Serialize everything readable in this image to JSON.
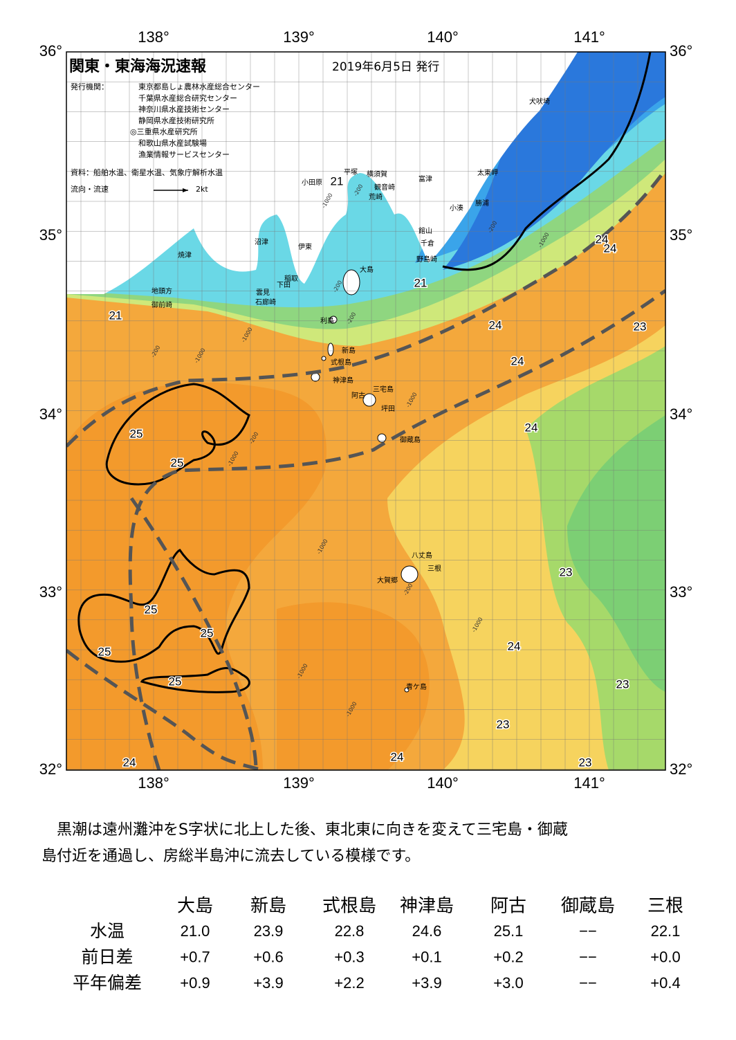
{
  "header": {
    "title": "関東・東海海況速報",
    "date": "2019年6月5日 発行",
    "issuer_label": "発行機関：",
    "issuers": [
      "東京都島しょ農林水産総合センター",
      "千葉県水産総合研究センター",
      "神奈川県水産技術センター",
      "静岡県水産技術研究所",
      "◎三重県水産研究所",
      "和歌山県水産試験場",
      "漁業情報サービスセンター"
    ],
    "source": "資料：船舶水温、衛星水温、気象庁解析水温",
    "legend_label": "流向・流速",
    "legend_speed": "2kt"
  },
  "map": {
    "lon_labels": [
      "138°",
      "139°",
      "140°",
      "141°"
    ],
    "lat_labels": [
      "36°",
      "35°",
      "34°",
      "33°",
      "32°"
    ],
    "places": [
      "小田原",
      "平塚",
      "横須賀",
      "観音崎",
      "荒崎",
      "富津",
      "太東岬",
      "犬吠埼",
      "勝浦",
      "小湊",
      "館山",
      "千倉",
      "野島崎",
      "沼津",
      "伊東",
      "焼津",
      "稲取",
      "下田",
      "雲見",
      "石廊崎",
      "地頭方",
      "御前崎",
      "大島",
      "利島",
      "新島",
      "式根島",
      "神津島",
      "三宅島",
      "阿古",
      "坪田",
      "御蔵島",
      "八丈島",
      "三根",
      "大賀郷",
      "青ケ島"
    ],
    "temperature_labels": [
      "21",
      "21",
      "21",
      "24",
      "24",
      "24",
      "23",
      "24",
      "24",
      "25",
      "25",
      "23",
      "25",
      "25",
      "25",
      "24",
      "25",
      "23",
      "23",
      "24",
      "24",
      "23"
    ],
    "depth_labels": [
      "-200",
      "-1000",
      "-200",
      "-1000",
      "-200",
      "-200",
      "-1000",
      "-1000",
      "-200",
      "-200",
      "-1000",
      "-1000",
      "-200",
      "-1000",
      "-1000",
      "-1000",
      "-1000"
    ]
  },
  "description": [
    "黒潮は遠州灘沖をS字状に北上した後、東北東に向きを変えて三宅島・御蔵",
    "島付近を通過し、房総半島沖に流去している模様です。"
  ],
  "table": {
    "columns": [
      "大島",
      "新島",
      "式根島",
      "神津島",
      "阿古",
      "御蔵島",
      "三根"
    ],
    "rows": [
      [
        "水温",
        "21.0",
        "23.9",
        "22.8",
        "24.6",
        "25.1",
        "−−",
        "22.1"
      ],
      [
        "前日差",
        "+0.7",
        "+0.6",
        "+0.3",
        "+0.1",
        "+0.2",
        "−−",
        "+0.0"
      ],
      [
        "平年偏差",
        "+0.9",
        "+3.9",
        "+2.2",
        "+3.9",
        "+3.0",
        "−−",
        "+0.4"
      ]
    ]
  }
}
